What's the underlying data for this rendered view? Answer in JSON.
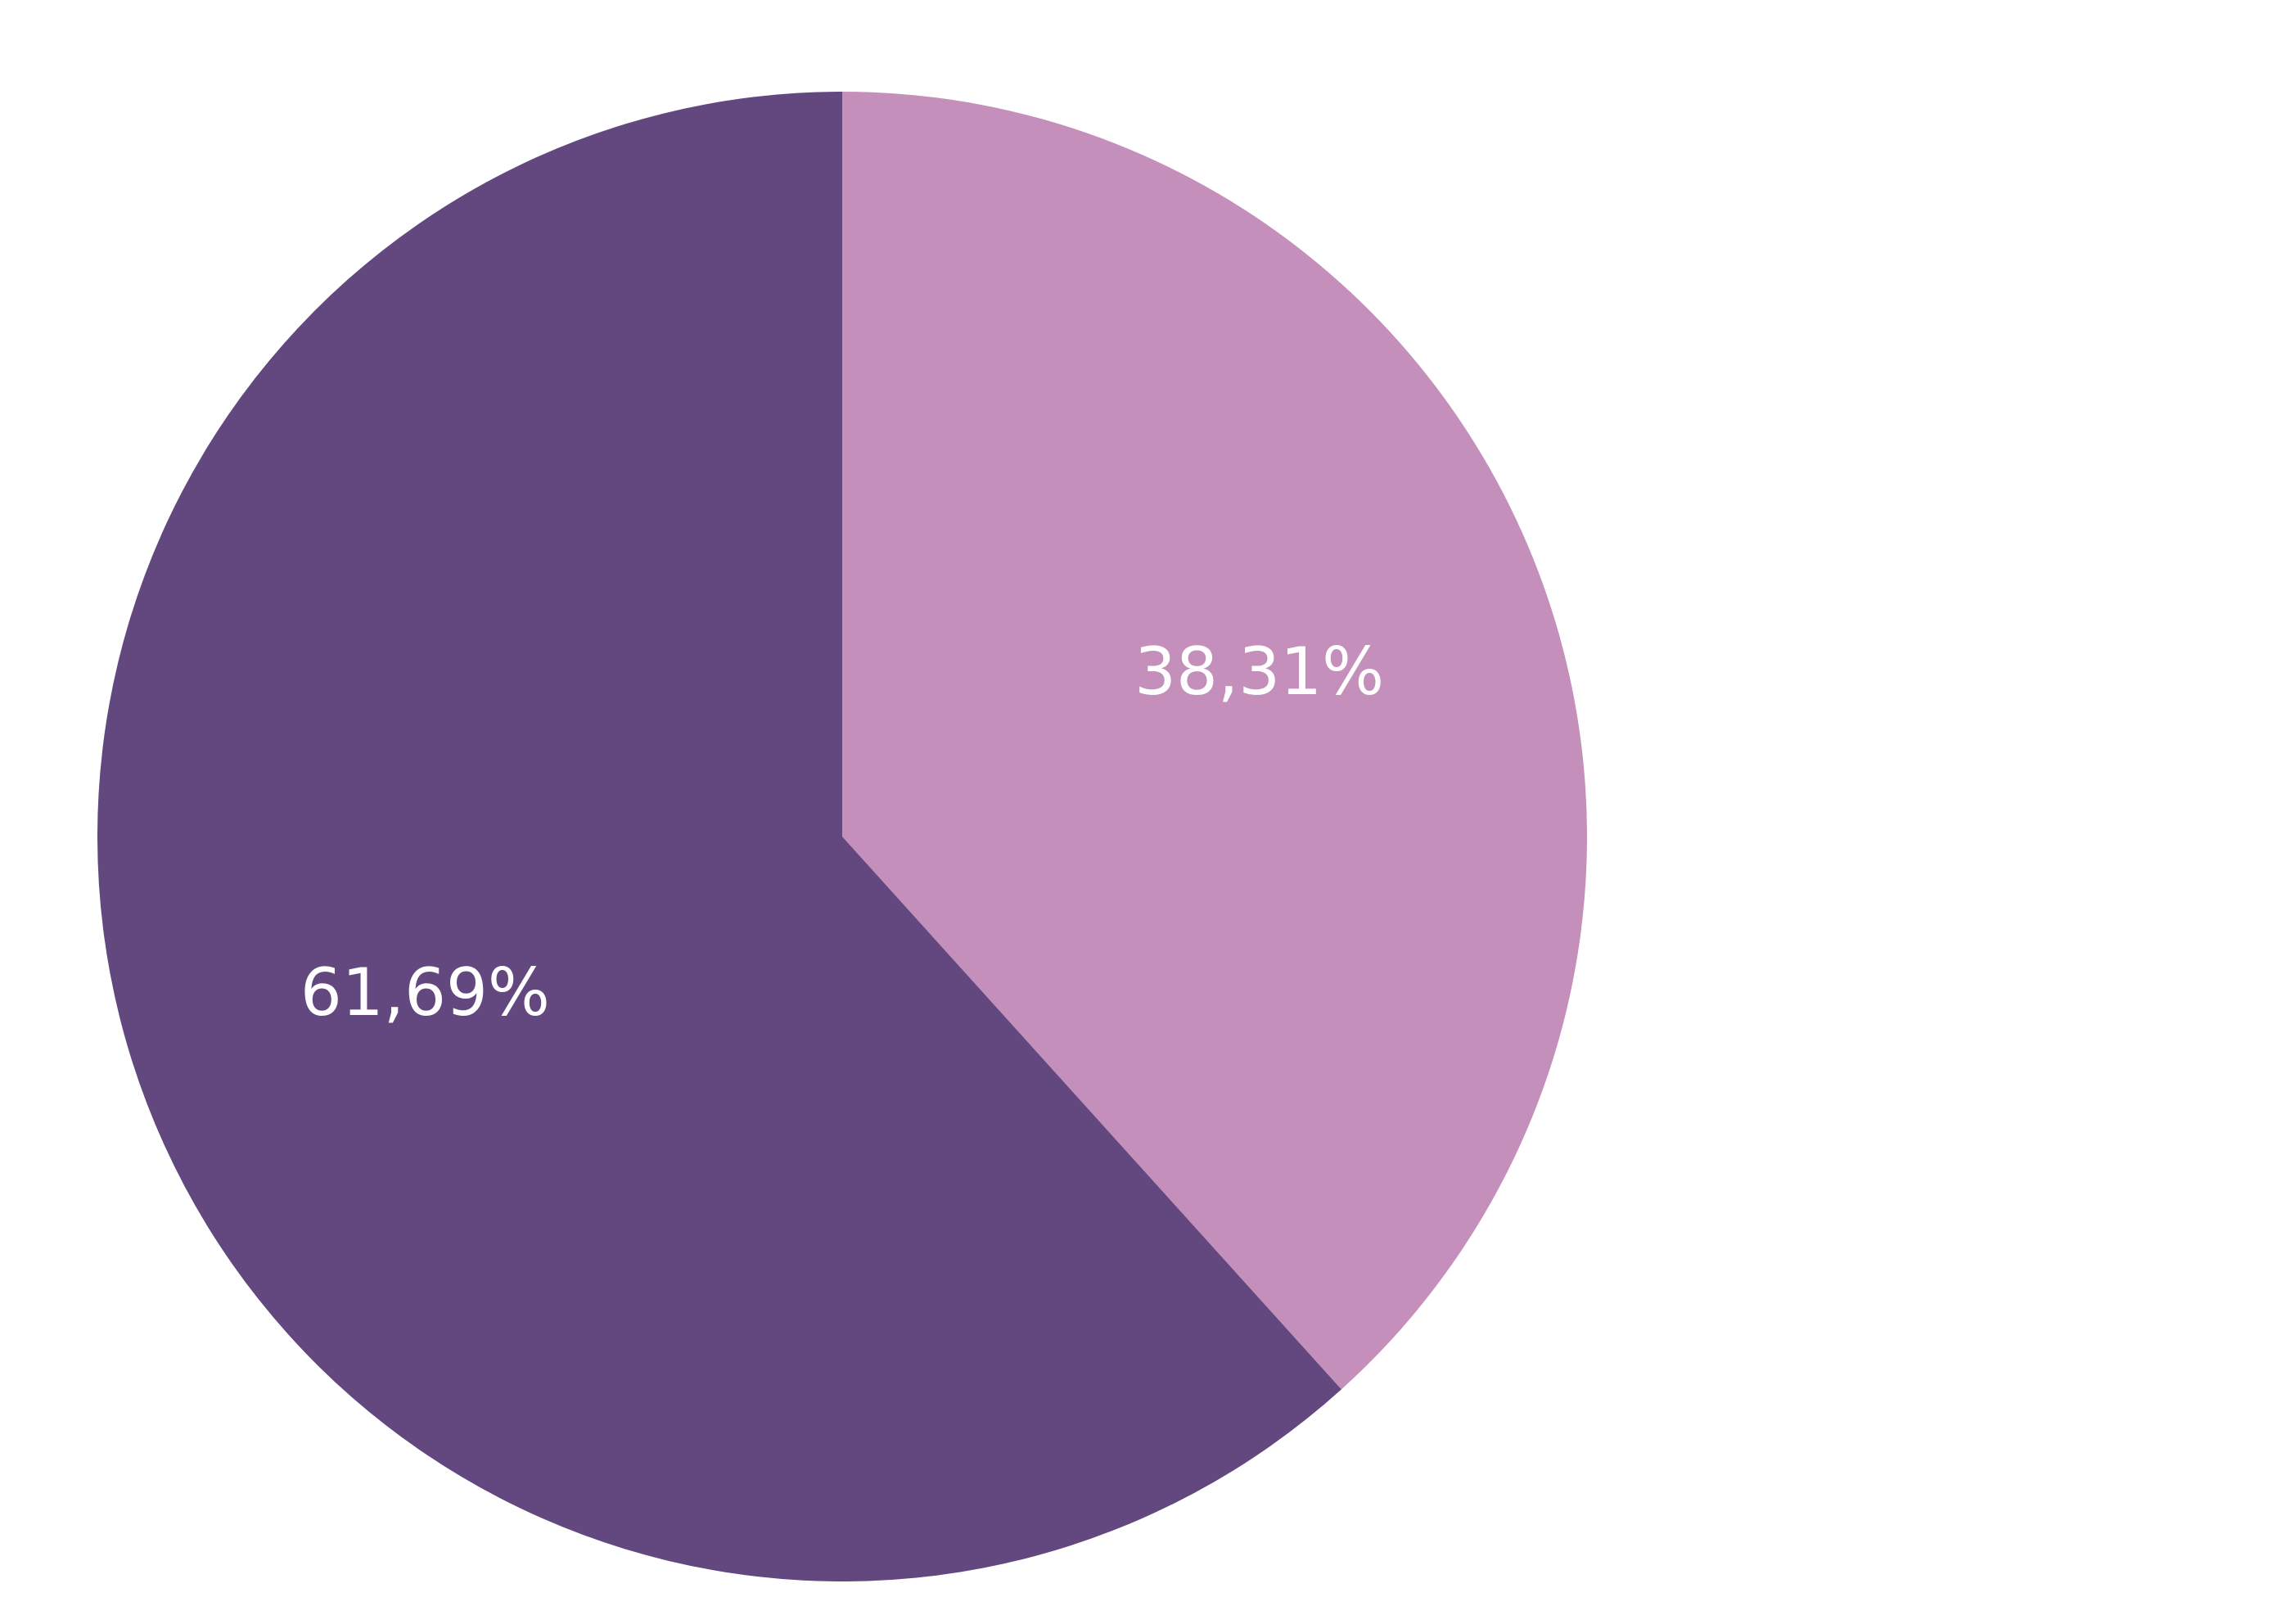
{
  "chart_data": {
    "type": "pie",
    "values": [
      38.31,
      61.69
    ],
    "value_labels": [
      "38,31%",
      "61,69%"
    ],
    "colors": [
      "#c48fbb",
      "#62487f"
    ]
  }
}
